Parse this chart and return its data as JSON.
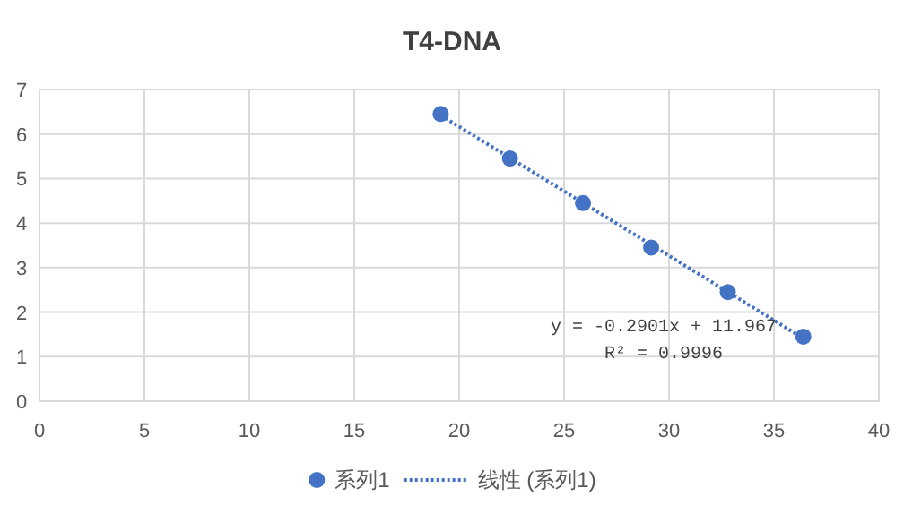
{
  "chart_data": {
    "type": "scatter",
    "title": "T4-DNA",
    "x": [
      19.12,
      22.42,
      25.9,
      29.15,
      32.8,
      36.4
    ],
    "series": [
      {
        "name": "系列1",
        "color": "#4472c4",
        "values": [
          6.45,
          5.45,
          4.45,
          3.45,
          2.45,
          1.45
        ]
      },
      {
        "name": "线性 (系列1)",
        "type": "line",
        "color": "#4472c4",
        "x": [
          19.12,
          36.4
        ],
        "values": [
          6.42,
          1.41
        ],
        "line_style": "dotted",
        "marker": "none"
      }
    ],
    "xlim": [
      0,
      40
    ],
    "ylim": [
      0,
      7
    ],
    "xticks": [
      0,
      5,
      10,
      15,
      20,
      25,
      30,
      35,
      40
    ],
    "yticks": [
      0,
      1,
      2,
      3,
      4,
      5,
      6,
      7
    ],
    "grid": true,
    "legend": "bottom",
    "marker": "circle",
    "annotations": [
      "y = -0.2901x + 11.967",
      "R² = 0.9996"
    ]
  }
}
